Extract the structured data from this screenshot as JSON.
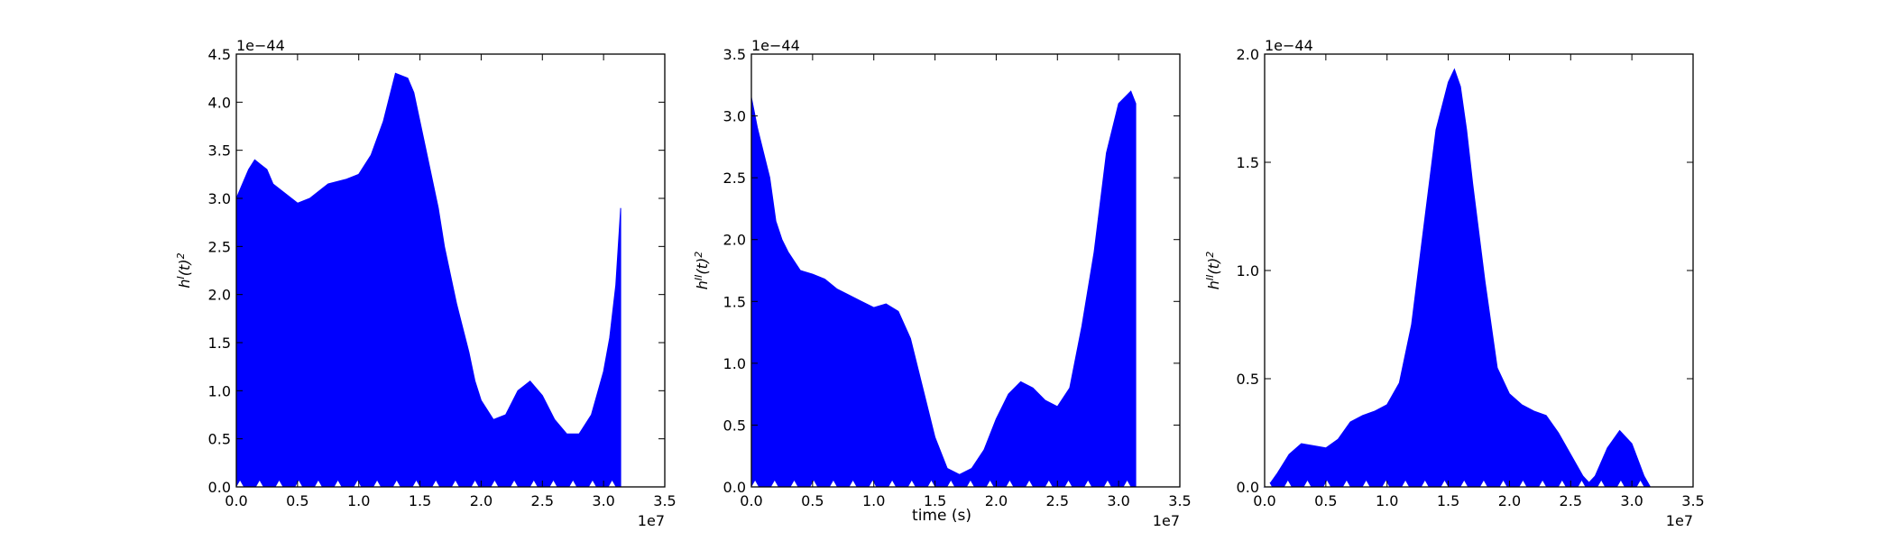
{
  "chart_data": [
    {
      "type": "area",
      "xlabel": "",
      "ylabel": "h^I(t)^2",
      "x_offset_label": "1e7",
      "y_offset_label": "1e−44",
      "xlim": [
        0,
        3.5
      ],
      "ylim": [
        0,
        4.5
      ],
      "xticks": [
        "0.0",
        "0.5",
        "1.0",
        "1.5",
        "2.0",
        "2.5",
        "3.0",
        "3.5"
      ],
      "yticks": [
        "0.0",
        "0.5",
        "1.0",
        "1.5",
        "2.0",
        "2.5",
        "3.0",
        "3.5",
        "4.0",
        "4.5"
      ],
      "color": "#0000ff",
      "x": [
        0,
        0.05,
        0.1,
        0.15,
        0.2,
        0.25,
        0.3,
        0.4,
        0.5,
        0.6,
        0.7,
        0.75,
        0.9,
        1.0,
        1.1,
        1.2,
        1.3,
        1.4,
        1.45,
        1.55,
        1.65,
        1.7,
        1.75,
        1.8,
        1.9,
        1.95,
        2.0,
        2.1,
        2.2,
        2.3,
        2.4,
        2.5,
        2.6,
        2.7,
        2.8,
        2.9,
        3.0,
        3.05,
        3.1,
        3.14
      ],
      "y": [
        3.0,
        3.15,
        3.3,
        3.4,
        3.35,
        3.3,
        3.15,
        3.05,
        2.95,
        3.0,
        3.1,
        3.15,
        3.2,
        3.25,
        3.45,
        3.8,
        4.3,
        4.25,
        4.1,
        3.5,
        2.9,
        2.5,
        2.2,
        1.9,
        1.4,
        1.1,
        0.9,
        0.7,
        0.75,
        1.0,
        1.1,
        0.95,
        0.7,
        0.55,
        0.55,
        0.75,
        1.2,
        1.55,
        2.1,
        2.9
      ]
    },
    {
      "type": "area",
      "xlabel": "time (s)",
      "ylabel": "h^II(t)^2",
      "x_offset_label": "1e7",
      "y_offset_label": "1e−44",
      "xlim": [
        0,
        3.5
      ],
      "ylim": [
        0,
        3.5
      ],
      "xticks": [
        "0.0",
        "0.5",
        "1.0",
        "1.5",
        "2.0",
        "2.5",
        "3.0",
        "3.5"
      ],
      "yticks": [
        "0.0",
        "0.5",
        "1.0",
        "1.5",
        "2.0",
        "2.5",
        "3.0",
        "3.5"
      ],
      "color": "#0000ff",
      "x": [
        0,
        0.05,
        0.1,
        0.15,
        0.2,
        0.25,
        0.3,
        0.4,
        0.5,
        0.6,
        0.7,
        0.8,
        0.9,
        1.0,
        1.1,
        1.2,
        1.3,
        1.4,
        1.5,
        1.6,
        1.7,
        1.8,
        1.9,
        2.0,
        2.1,
        2.2,
        2.3,
        2.4,
        2.5,
        2.6,
        2.7,
        2.8,
        2.9,
        3.0,
        3.1,
        3.14
      ],
      "y": [
        3.15,
        2.9,
        2.7,
        2.5,
        2.15,
        2.0,
        1.9,
        1.75,
        1.72,
        1.68,
        1.6,
        1.55,
        1.5,
        1.45,
        1.48,
        1.42,
        1.2,
        0.8,
        0.4,
        0.15,
        0.1,
        0.15,
        0.3,
        0.55,
        0.75,
        0.85,
        0.8,
        0.7,
        0.65,
        0.8,
        1.3,
        1.9,
        2.7,
        3.1,
        3.2,
        3.1
      ]
    },
    {
      "type": "area",
      "xlabel": "",
      "ylabel": "h^II(t)^2",
      "x_offset_label": "1e7",
      "y_offset_label": "1e−44",
      "xlim": [
        0,
        3.5
      ],
      "ylim": [
        0,
        2.0
      ],
      "xticks": [
        "0.0",
        "0.5",
        "1.0",
        "1.5",
        "2.0",
        "2.5",
        "3.0",
        "3.5"
      ],
      "yticks": [
        "0.0",
        "0.5",
        "1.0",
        "1.5",
        "2.0"
      ],
      "color": "#0000ff",
      "x": [
        0,
        0.05,
        0.1,
        0.2,
        0.3,
        0.4,
        0.5,
        0.6,
        0.7,
        0.8,
        0.9,
        1.0,
        1.1,
        1.2,
        1.3,
        1.4,
        1.5,
        1.55,
        1.6,
        1.65,
        1.7,
        1.8,
        1.9,
        2.0,
        2.1,
        2.2,
        2.3,
        2.4,
        2.5,
        2.6,
        2.65,
        2.7,
        2.8,
        2.9,
        3.0,
        3.1,
        3.15
      ],
      "y": [
        0.0,
        0.02,
        0.06,
        0.15,
        0.2,
        0.19,
        0.18,
        0.22,
        0.3,
        0.33,
        0.35,
        0.38,
        0.48,
        0.75,
        1.2,
        1.65,
        1.87,
        1.93,
        1.85,
        1.65,
        1.4,
        0.95,
        0.55,
        0.43,
        0.38,
        0.35,
        0.33,
        0.25,
        0.15,
        0.05,
        0.02,
        0.05,
        0.18,
        0.26,
        0.2,
        0.05,
        0.0
      ]
    }
  ]
}
